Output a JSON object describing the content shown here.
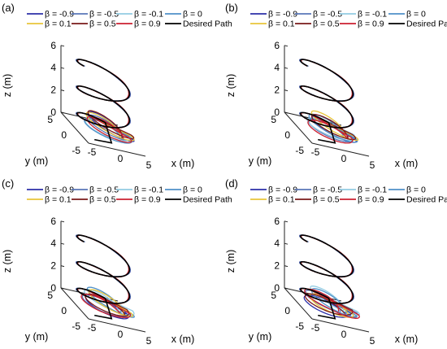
{
  "chart_data": [
    {
      "panel": "(a)",
      "type": "line",
      "series": [
        {
          "name": "β = -0.9",
          "color": "#2b2fa8"
        },
        {
          "name": "β = -0.5",
          "color": "#5a77b8"
        },
        {
          "name": "β = -0.1",
          "color": "#92cce3"
        },
        {
          "name": "β = 0",
          "color": "#4f90c8"
        },
        {
          "name": "β = 0.1",
          "color": "#e8c43a"
        },
        {
          "name": "β = 0.5",
          "color": "#7a1a1a"
        },
        {
          "name": "β = 0.9",
          "color": "#cc2030"
        },
        {
          "name": "Desired Path",
          "color": "#000000"
        }
      ],
      "xlabel": "x (m)",
      "ylabel": "y (m)",
      "zlabel": "z (m)",
      "xticks": [
        "-5",
        "0",
        "5"
      ],
      "yticks": [
        "5",
        "0",
        "-5"
      ],
      "zticks": [
        "0",
        "2",
        "4",
        "6"
      ],
      "zlim": [
        0,
        6
      ]
    },
    {
      "panel": "(b)",
      "type": "line",
      "series": [
        {
          "name": "β = -0.9",
          "color": "#2b2fa8"
        },
        {
          "name": "β = -0.5",
          "color": "#5a77b8"
        },
        {
          "name": "β = -0.1",
          "color": "#92cce3"
        },
        {
          "name": "β = 0",
          "color": "#4f90c8"
        },
        {
          "name": "β = 0.1",
          "color": "#e8c43a"
        },
        {
          "name": "β = 0.5",
          "color": "#7a1a1a"
        },
        {
          "name": "β = 0.9",
          "color": "#cc2030"
        },
        {
          "name": "Desired Path",
          "color": "#000000"
        }
      ],
      "xlabel": "x (m)",
      "ylabel": "y (m)",
      "zlabel": "z (m)",
      "xticks": [
        "-5",
        "0",
        "5"
      ],
      "yticks": [
        "5",
        "0",
        "-5"
      ],
      "zticks": [
        "0",
        "2",
        "4",
        "6"
      ],
      "zlim": [
        0,
        6
      ]
    },
    {
      "panel": "(c)",
      "type": "line",
      "series": [
        {
          "name": "β = -0.9",
          "color": "#2b2fa8"
        },
        {
          "name": "β = -0.5",
          "color": "#5a77b8"
        },
        {
          "name": "β = -0.1",
          "color": "#92cce3"
        },
        {
          "name": "β = 0",
          "color": "#4f90c8"
        },
        {
          "name": "β = 0.1",
          "color": "#e8c43a"
        },
        {
          "name": "β = 0.5",
          "color": "#7a1a1a"
        },
        {
          "name": "β = 0.9",
          "color": "#cc2030"
        },
        {
          "name": "Desired Path",
          "color": "#000000"
        }
      ],
      "xlabel": "x (m)",
      "ylabel": "y (m)",
      "zlabel": "z (m)",
      "xticks": [
        "-5",
        "0",
        "5"
      ],
      "yticks": [
        "5",
        "0",
        "-5"
      ],
      "zticks": [
        "0",
        "2",
        "4",
        "6"
      ],
      "zlim": [
        0,
        6
      ]
    },
    {
      "panel": "(d)",
      "type": "line",
      "series": [
        {
          "name": "β = -0.9",
          "color": "#2b2fa8"
        },
        {
          "name": "β = -0.5",
          "color": "#5a77b8"
        },
        {
          "name": "β = -0.1",
          "color": "#92cce3"
        },
        {
          "name": "β = 0",
          "color": "#4f90c8"
        },
        {
          "name": "β = 0.1",
          "color": "#e8c43a"
        },
        {
          "name": "β = 0.5",
          "color": "#7a1a1a"
        },
        {
          "name": "β = 0.9",
          "color": "#cc2030"
        },
        {
          "name": "Desired Path",
          "color": "#000000"
        }
      ],
      "xlabel": "x (m)",
      "ylabel": "y (m)",
      "zlabel": "z (m)",
      "xticks": [
        "-5",
        "0",
        "5"
      ],
      "yticks": [
        "5",
        "0",
        "-5"
      ],
      "zticks": [
        "0",
        "2",
        "4",
        "6"
      ],
      "zlim": [
        0,
        6
      ]
    }
  ]
}
